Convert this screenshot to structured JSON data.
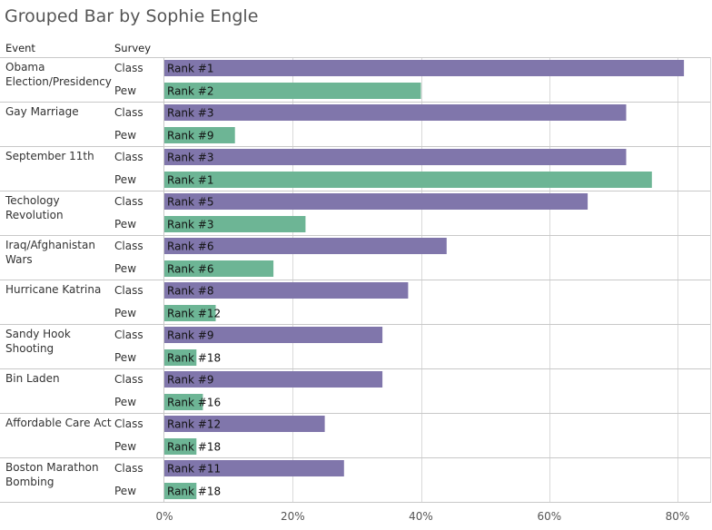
{
  "title": "Grouped Bar by Sophie Engle",
  "headers": {
    "event": "Event",
    "survey": "Survey"
  },
  "colors": {
    "class": "#8076ab",
    "pew": "#6db595",
    "grid": "#d9d9d9",
    "axis": "#c8c8c8"
  },
  "chart_data": {
    "type": "bar",
    "orientation": "horizontal",
    "title": "Grouped Bar by Sophie Engle",
    "xlabel": "",
    "ylabel": "",
    "xlim": [
      0,
      85
    ],
    "x_ticks": [
      "0%",
      "20%",
      "40%",
      "60%",
      "80%"
    ],
    "x_tick_values": [
      0,
      20,
      40,
      60,
      80
    ],
    "grid": true,
    "groups": [
      {
        "event": "Obama Election/Presidency",
        "event_lines": [
          "Obama",
          "Election/Presidency"
        ],
        "bars": [
          {
            "survey": "Class",
            "value": 81,
            "label": "Rank #1"
          },
          {
            "survey": "Pew",
            "value": 40,
            "label": "Rank #2"
          }
        ]
      },
      {
        "event": "Gay Marriage",
        "event_lines": [
          "Gay Marriage"
        ],
        "bars": [
          {
            "survey": "Class",
            "value": 72,
            "label": "Rank #3"
          },
          {
            "survey": "Pew",
            "value": 11,
            "label": "Rank #9"
          }
        ]
      },
      {
        "event": "September 11th",
        "event_lines": [
          "September 11th"
        ],
        "bars": [
          {
            "survey": "Class",
            "value": 72,
            "label": "Rank #3"
          },
          {
            "survey": "Pew",
            "value": 76,
            "label": "Rank #1"
          }
        ]
      },
      {
        "event": "Techology Revolution",
        "event_lines": [
          "Techology",
          "Revolution"
        ],
        "bars": [
          {
            "survey": "Class",
            "value": 66,
            "label": "Rank #5"
          },
          {
            "survey": "Pew",
            "value": 22,
            "label": "Rank #3"
          }
        ]
      },
      {
        "event": "Iraq/Afghanistan Wars",
        "event_lines": [
          "Iraq/Afghanistan",
          "Wars"
        ],
        "bars": [
          {
            "survey": "Class",
            "value": 44,
            "label": "Rank #6"
          },
          {
            "survey": "Pew",
            "value": 17,
            "label": "Rank #6"
          }
        ]
      },
      {
        "event": "Hurricane Katrina",
        "event_lines": [
          "Hurricane Katrina"
        ],
        "bars": [
          {
            "survey": "Class",
            "value": 38,
            "label": "Rank #8"
          },
          {
            "survey": "Pew",
            "value": 8,
            "label": "Rank #12"
          }
        ]
      },
      {
        "event": "Sandy Hook Shooting",
        "event_lines": [
          "Sandy Hook",
          "Shooting"
        ],
        "bars": [
          {
            "survey": "Class",
            "value": 34,
            "label": "Rank #9"
          },
          {
            "survey": "Pew",
            "value": 5,
            "label": "Rank #18"
          }
        ]
      },
      {
        "event": "Bin Laden",
        "event_lines": [
          "Bin Laden"
        ],
        "bars": [
          {
            "survey": "Class",
            "value": 34,
            "label": "Rank #9"
          },
          {
            "survey": "Pew",
            "value": 6,
            "label": "Rank #16"
          }
        ]
      },
      {
        "event": "Affordable Care Act",
        "event_lines": [
          "Affordable Care Act"
        ],
        "bars": [
          {
            "survey": "Class",
            "value": 25,
            "label": "Rank #12"
          },
          {
            "survey": "Pew",
            "value": 5,
            "label": "Rank #18"
          }
        ]
      },
      {
        "event": "Boston Marathon Bombing",
        "event_lines": [
          "Boston Marathon",
          "Bombing"
        ],
        "bars": [
          {
            "survey": "Class",
            "value": 28,
            "label": "Rank #11"
          },
          {
            "survey": "Pew",
            "value": 5,
            "label": "Rank #18"
          }
        ]
      }
    ]
  }
}
